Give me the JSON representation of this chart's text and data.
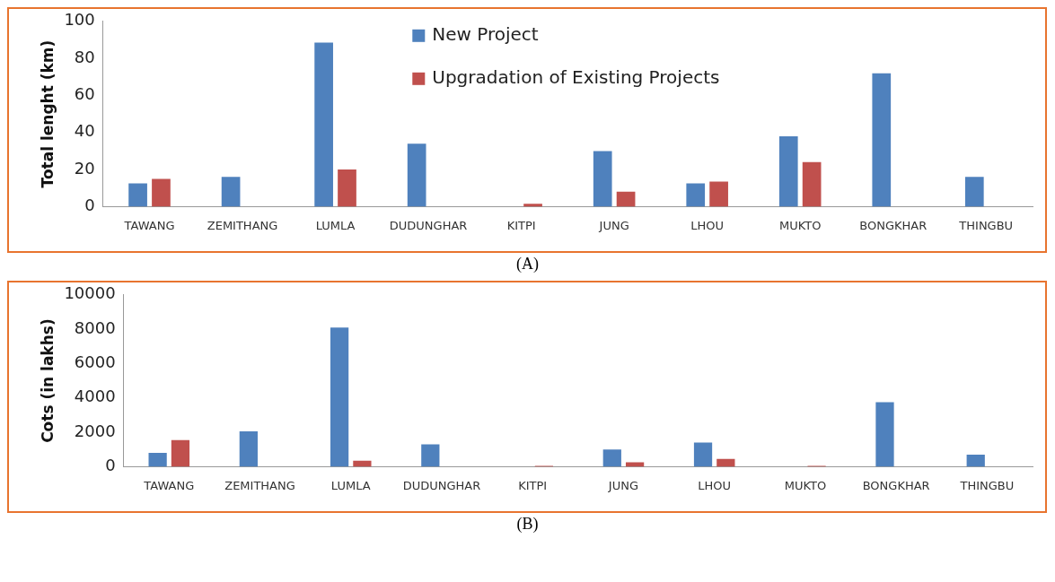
{
  "chart_data": [
    {
      "type": "bar",
      "ylabel": "Total lenght (km)",
      "categories": [
        "TAWANG",
        "ZEMITHANG",
        "LUMLA",
        "DUDUNGHAR",
        "KITPI",
        "JUNG",
        "LHOU",
        "MUKTO",
        "BONGKHAR",
        "THINGBU"
      ],
      "series": [
        {
          "name": "New Project",
          "color": "#4f81bd",
          "values": [
            12.5,
            16,
            88.5,
            34,
            null,
            30,
            12.5,
            38,
            72,
            16
          ]
        },
        {
          "name": "Upgradation of Existing Projects",
          "color": "#c0504d",
          "values": [
            15,
            null,
            20,
            null,
            1.5,
            8,
            13.5,
            24,
            null,
            null
          ]
        }
      ],
      "ylim": [
        0,
        100
      ],
      "yticks": [
        0,
        20,
        40,
        60,
        80,
        100
      ],
      "grid": false,
      "legend": "top",
      "annotations": [
        "(A)"
      ]
    },
    {
      "type": "bar",
      "ylabel": "Cots (in lakhs)",
      "categories": [
        "TAWANG",
        "ZEMITHANG",
        "LUMLA",
        "DUDUNGHAR",
        "KITPI",
        "JUNG",
        "LHOU",
        "MUKTO",
        "BONGKHAR",
        "THINGBU"
      ],
      "series": [
        {
          "color": "#4f81bd",
          "values": [
            800,
            2050,
            8100,
            1300,
            null,
            1000,
            1400,
            null,
            3750,
            700
          ]
        },
        {
          "color": "#c0504d",
          "values": [
            1550,
            null,
            350,
            null,
            50,
            250,
            450,
            50,
            null,
            null
          ]
        }
      ],
      "ylim": [
        0,
        10000
      ],
      "yticks": [
        0,
        2000,
        4000,
        6000,
        8000,
        10000
      ],
      "grid": false,
      "annotations": [
        "(B)"
      ]
    }
  ]
}
